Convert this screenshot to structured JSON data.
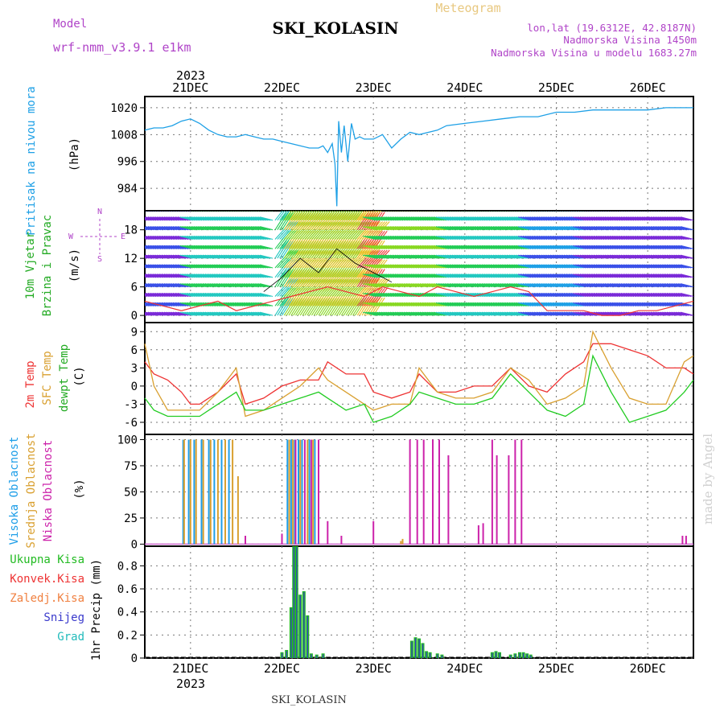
{
  "header": {
    "model_label": "Model",
    "model_value": "wrf-nmm_v3.9.1 e1km",
    "title": "SKI_KOLASIN",
    "product": "Meteogram",
    "coords": "lon,lat (19.6312E, 42.8187N)",
    "elevation": "Nadmorska Visina 1450m",
    "model_elevation": "Nadmorska Visina u modelu 1683.27m",
    "credit": "made by Angel",
    "footer": "SKI_KOLASIN"
  },
  "x_axis": {
    "year": "2023",
    "days": [
      "21DEC",
      "22DEC",
      "23DEC",
      "24DEC",
      "25DEC",
      "26DEC"
    ],
    "start_day": 20.5,
    "end_day": 26.5
  },
  "colors": {
    "pressure": "#1ea0e6",
    "t2m": "#ee3333",
    "sfc": "#d9a030",
    "dewpt": "#22cc22",
    "cloud_high": "#1e9ee8",
    "cloud_mid": "#d9a030",
    "cloud_low": "#cc22aa",
    "precip_total": "#22bb22",
    "precip_snow": "#3a3acc",
    "precip_grad": "#22bbbb",
    "wind_speed": "#ee3333",
    "gust": "#000000"
  },
  "chart_data": [
    {
      "panel": "pressure",
      "type": "line",
      "ylabel": [
        "Pritisak na nivou mora",
        "(hPa)"
      ],
      "yticks": [
        984,
        996,
        1008,
        1020
      ],
      "ylim": [
        974,
        1025
      ],
      "series": [
        {
          "x": [
            20.5,
            20.6,
            20.7,
            20.8,
            20.9,
            21.0,
            21.1,
            21.2,
            21.3,
            21.4,
            21.5,
            21.6,
            21.7,
            21.8,
            21.9,
            22.0,
            22.1,
            22.2,
            22.3,
            22.4,
            22.45,
            22.5,
            22.55,
            22.58,
            22.6,
            22.62,
            22.65,
            22.68,
            22.72,
            22.76,
            22.8,
            22.85,
            22.9,
            23.0,
            23.1,
            23.2,
            23.3,
            23.4,
            23.5,
            23.6,
            23.7,
            23.8,
            24.0,
            24.2,
            24.4,
            24.6,
            24.8,
            25.0,
            25.2,
            25.4,
            25.6,
            25.8,
            26.0,
            26.2,
            26.4,
            26.5
          ],
          "y": [
            1010,
            1011,
            1011,
            1012,
            1014,
            1015,
            1013,
            1010,
            1008,
            1007,
            1007,
            1008,
            1007,
            1006,
            1006,
            1005,
            1004,
            1003,
            1002,
            1002,
            1003,
            1000,
            1004,
            995,
            976,
            1014,
            1000,
            1012,
            996,
            1013,
            1006,
            1007,
            1006,
            1006,
            1008,
            1002,
            1006,
            1009,
            1008,
            1009,
            1010,
            1012,
            1013,
            1014,
            1015,
            1016,
            1016,
            1018,
            1018,
            1019,
            1019,
            1019,
            1019,
            1020,
            1020,
            1020
          ]
        }
      ]
    },
    {
      "panel": "wind",
      "type": "line",
      "ylabel": [
        "10m Vjetar",
        "Brzina i Pravac",
        "(m/s)"
      ],
      "compass": [
        "N",
        "E",
        "S",
        "W"
      ],
      "yticks": [
        0,
        6,
        12,
        18
      ],
      "ylim": [
        -1.5,
        22
      ],
      "barb_levels": [
        0,
        2,
        4,
        6,
        8,
        10,
        12,
        14,
        16,
        18,
        20,
        22
      ],
      "series": [
        {
          "name": "speed",
          "x": [
            20.5,
            20.7,
            20.9,
            21.1,
            21.3,
            21.5,
            21.7,
            21.9,
            22.1,
            22.3,
            22.5,
            22.7,
            22.9,
            23.1,
            23.3,
            23.5,
            23.7,
            23.9,
            24.1,
            24.3,
            24.5,
            24.7,
            24.9,
            25.1,
            25.3,
            25.5,
            25.7,
            25.9,
            26.1,
            26.3,
            26.5
          ],
          "y": [
            3,
            2,
            1,
            2,
            3,
            1,
            2,
            3,
            4,
            5,
            6,
            5,
            4,
            6,
            5,
            4,
            6,
            5,
            4,
            5,
            6,
            5,
            1,
            1,
            1,
            0,
            0,
            1,
            1,
            2,
            3
          ]
        },
        {
          "name": "gust",
          "x": [
            21.8,
            22.0,
            22.2,
            22.4,
            22.6,
            22.8,
            23.0,
            23.2
          ],
          "y": [
            5,
            8,
            12,
            9,
            14,
            11,
            9,
            7
          ]
        }
      ]
    },
    {
      "panel": "temperature",
      "type": "line",
      "ylabel": [
        "2m Temp",
        "SFC Temp",
        "dewpt Temp",
        "(C)"
      ],
      "yticks": [
        -6,
        -3,
        0,
        3,
        6,
        9
      ],
      "ylim": [
        -8,
        10.5
      ],
      "series": [
        {
          "name": "2m Temp",
          "x": [
            20.5,
            20.6,
            20.75,
            20.9,
            21.0,
            21.1,
            21.3,
            21.5,
            21.6,
            21.8,
            22.0,
            22.2,
            22.4,
            22.5,
            22.7,
            22.9,
            23.0,
            23.2,
            23.4,
            23.5,
            23.7,
            23.9,
            24.1,
            24.3,
            24.5,
            24.7,
            24.9,
            25.1,
            25.3,
            25.4,
            25.6,
            25.8,
            26.0,
            26.2,
            26.4,
            26.5
          ],
          "y": [
            4,
            2,
            1,
            -1,
            -3,
            -3,
            -1,
            2,
            -3,
            -2,
            0,
            1,
            1,
            4,
            2,
            2,
            -1,
            -2,
            -1,
            2,
            -1,
            -1,
            0,
            0,
            3,
            0,
            -1,
            2,
            4,
            7,
            7,
            6,
            5,
            3,
            3,
            2
          ]
        },
        {
          "name": "SFC Temp",
          "x": [
            20.5,
            20.6,
            20.75,
            20.9,
            21.0,
            21.1,
            21.3,
            21.5,
            21.6,
            21.8,
            22.0,
            22.2,
            22.4,
            22.5,
            22.7,
            22.9,
            23.0,
            23.2,
            23.4,
            23.5,
            23.7,
            23.9,
            24.1,
            24.3,
            24.5,
            24.7,
            24.9,
            25.1,
            25.3,
            25.4,
            25.6,
            25.8,
            26.0,
            26.2,
            26.4,
            26.5
          ],
          "y": [
            7,
            0,
            -4,
            -4,
            -4,
            -4,
            -1,
            3,
            -5,
            -4,
            -2,
            0,
            3,
            1,
            -1,
            -3,
            -4,
            -3,
            -3,
            3,
            -1,
            -2,
            -2,
            -1,
            3,
            1,
            -3,
            -2,
            0,
            9,
            3,
            -2,
            -3,
            -3,
            4,
            5
          ]
        },
        {
          "name": "dewpt Temp",
          "x": [
            20.5,
            20.6,
            20.75,
            20.9,
            21.0,
            21.1,
            21.3,
            21.5,
            21.6,
            21.8,
            22.0,
            22.2,
            22.4,
            22.5,
            22.7,
            22.9,
            23.0,
            23.2,
            23.4,
            23.5,
            23.7,
            23.9,
            24.1,
            24.3,
            24.5,
            24.7,
            24.9,
            25.1,
            25.3,
            25.4,
            25.6,
            25.8,
            26.0,
            26.2,
            26.4,
            26.5
          ],
          "y": [
            -2,
            -4,
            -5,
            -5,
            -5,
            -5,
            -3,
            -1,
            -4,
            -4,
            -3,
            -2,
            -1,
            -2,
            -4,
            -3,
            -6,
            -5,
            -3,
            -1,
            -2,
            -3,
            -3,
            -2,
            2,
            -1,
            -4,
            -5,
            -3,
            5,
            -1,
            -6,
            -5,
            -4,
            -1,
            1
          ]
        }
      ]
    },
    {
      "panel": "cloud",
      "type": "bar",
      "ylabel": [
        "Visoka Oblacnost",
        "Srednja Oblacnost",
        "Niska Oblacnost",
        "(%)"
      ],
      "yticks": [
        0,
        25,
        50,
        75,
        100
      ],
      "ylim": [
        -2,
        105
      ],
      "series": [
        {
          "name": "Visoka Oblacnost",
          "x": [
            20.92,
            20.98,
            21.04,
            21.12,
            21.2,
            21.26,
            21.34,
            21.42,
            22.06,
            22.1,
            22.14,
            22.18,
            22.22,
            22.3,
            22.36
          ],
          "y": [
            100,
            100,
            100,
            100,
            100,
            100,
            100,
            100,
            100,
            100,
            100,
            100,
            100,
            100,
            100
          ]
        },
        {
          "name": "Srednja Oblacnost",
          "x": [
            20.93,
            21.0,
            21.06,
            21.14,
            21.22,
            21.3,
            21.38,
            21.46,
            21.52,
            22.08,
            22.12,
            22.2,
            22.28,
            22.34,
            23.3,
            23.32
          ],
          "y": [
            100,
            100,
            100,
            100,
            100,
            100,
            100,
            100,
            65,
            100,
            100,
            100,
            100,
            100,
            3,
            5
          ]
        },
        {
          "name": "Niska Oblacnost",
          "x": [
            21.6,
            22.0,
            22.15,
            22.25,
            22.32,
            22.4,
            22.5,
            22.65,
            23.0,
            23.4,
            23.48,
            23.55,
            23.65,
            23.72,
            23.82,
            24.15,
            24.2,
            24.3,
            24.35,
            24.48,
            24.55,
            24.62,
            26.38,
            26.42
          ],
          "y": [
            8,
            10,
            100,
            100,
            100,
            100,
            22,
            8,
            22,
            100,
            100,
            100,
            100,
            100,
            85,
            18,
            20,
            100,
            85,
            85,
            100,
            100,
            8,
            8
          ]
        }
      ]
    },
    {
      "panel": "precip",
      "type": "bar",
      "ylabel": [
        "1hr Precip (mm)"
      ],
      "legend": [
        "Ukupna Kisa",
        "Konvek.Kisa",
        "Zaledj.Kisa",
        "Snijeg",
        "Grad"
      ],
      "yticks": [
        0,
        0.2,
        0.4,
        0.6,
        0.8
      ],
      "ylim": [
        0,
        0.97
      ],
      "series": [
        {
          "name": "Ukupna Kisa",
          "x": [
            22.0,
            22.05,
            22.1,
            22.13,
            22.16,
            22.2,
            22.24,
            22.28,
            22.32,
            22.38,
            22.45,
            23.42,
            23.46,
            23.5,
            23.54,
            23.58,
            23.62,
            23.7,
            23.75,
            24.3,
            24.34,
            24.38,
            24.5,
            24.55,
            24.6,
            24.64,
            24.68,
            24.72
          ],
          "y": [
            0.05,
            0.07,
            0.44,
            0.97,
            0.97,
            0.55,
            0.58,
            0.37,
            0.04,
            0.03,
            0.04,
            0.15,
            0.18,
            0.17,
            0.13,
            0.06,
            0.05,
            0.04,
            0.03,
            0.05,
            0.06,
            0.05,
            0.03,
            0.04,
            0.05,
            0.05,
            0.04,
            0.03
          ]
        }
      ]
    }
  ]
}
